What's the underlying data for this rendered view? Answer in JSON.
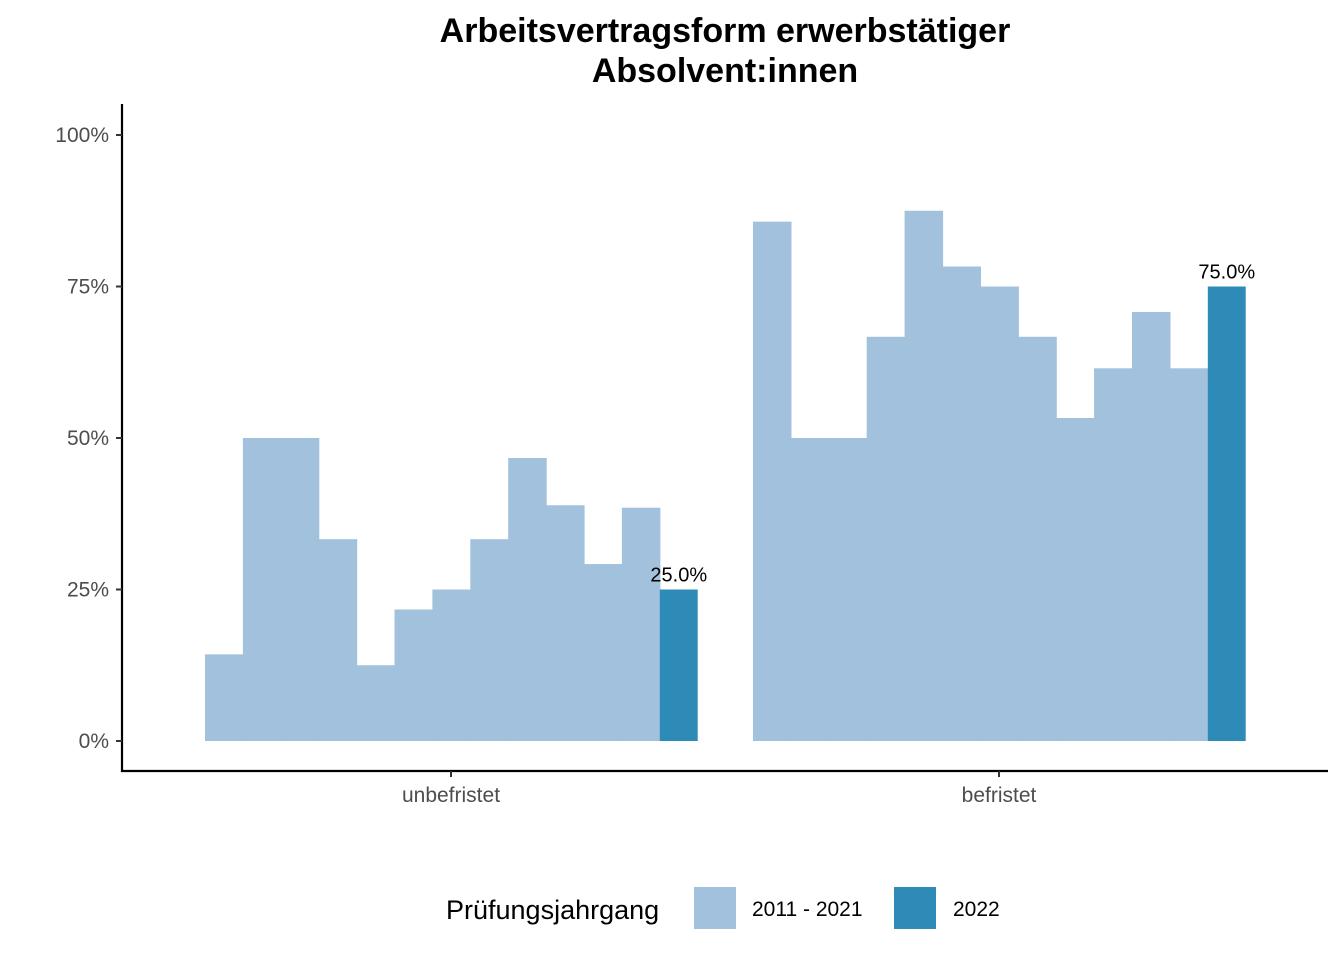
{
  "chart_data": {
    "type": "bar",
    "title_line1": "Arbeitsvertragsform erwerbstätiger",
    "title_line2": "Absolvent:innen",
    "categories": [
      "unbefristet",
      "befristet"
    ],
    "ylim": [
      0,
      1
    ],
    "yticks": [
      {
        "value": 0,
        "label": "0%"
      },
      {
        "value": 0.25,
        "label": "25%"
      },
      {
        "value": 0.5,
        "label": "50%"
      },
      {
        "value": 0.75,
        "label": "75%"
      },
      {
        "value": 1.0,
        "label": "100%"
      }
    ],
    "grid": false,
    "legend_position": "bottom",
    "legend": {
      "title": "Prüfungsjahrgang",
      "items": [
        {
          "label": "2011 - 2021",
          "color": "#a1c1dd"
        },
        {
          "label": "2022",
          "color": "#2e8ab6"
        }
      ]
    },
    "series": [
      {
        "name": "2011 - 2021",
        "color": "#a1c1dd",
        "groups": [
          [
            0.143,
            0.5,
            0.5,
            0.333,
            0.125,
            0.217,
            0.25,
            0.333,
            0.467,
            0.389,
            0.292,
            0.385
          ],
          [
            0.857,
            0.5,
            0.5,
            0.667,
            0.875,
            0.783,
            0.75,
            0.667,
            0.533,
            0.615,
            0.708,
            0.615
          ]
        ]
      },
      {
        "name": "2022",
        "color": "#2e8ab6",
        "values": [
          0.25,
          0.75
        ],
        "data_labels": [
          "25.0%",
          "75.0%"
        ]
      }
    ]
  }
}
